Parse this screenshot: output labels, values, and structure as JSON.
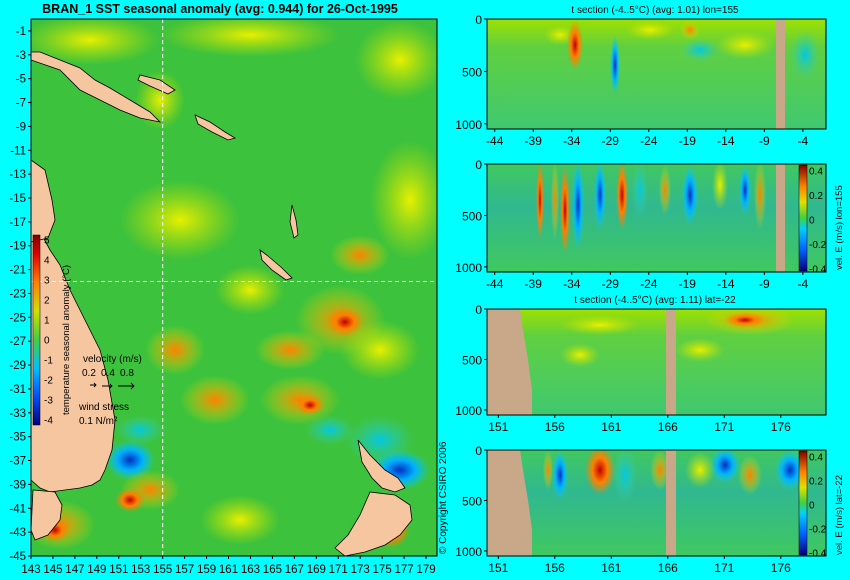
{
  "page": {
    "background": "#00ffff",
    "copyright": "© Copyright CSIRO 2006"
  },
  "chart_data": [
    {
      "type": "heatmap",
      "title": "BRAN_1 SST seasonal anomaly (avg: 0.944) for 26-Oct-1995",
      "x_ticks": [
        "143",
        "145",
        "147",
        "149",
        "151",
        "153",
        "155",
        "157",
        "159",
        "161",
        "163",
        "165",
        "167",
        "169",
        "171",
        "173",
        "175",
        "177",
        "179"
      ],
      "y_ticks": [
        "-1",
        "-3",
        "-5",
        "-7",
        "-9",
        "-11",
        "-13",
        "-15",
        "-17",
        "-19",
        "-21",
        "-23",
        "-25",
        "-27",
        "-29",
        "-31",
        "-33",
        "-35",
        "-37",
        "-39",
        "-41",
        "-43",
        "-45"
      ],
      "xlim": [
        143,
        180
      ],
      "ylim": [
        -45,
        0
      ],
      "crosshair": {
        "lon": 155,
        "lat": -22
      },
      "colorbar": {
        "label": "temperature seasonal anomaly (°C)",
        "ticks": [
          "5",
          "4",
          "3",
          "2",
          "1",
          "0",
          "-1",
          "-2",
          "-3",
          "-4"
        ],
        "range": [
          -4,
          5
        ]
      },
      "velocity_legend": {
        "label": "velocity (m/s)",
        "values": [
          "0.2",
          "0.4",
          "0.8"
        ]
      },
      "wind_legend": {
        "label": "wind stress",
        "value": "0.1 N/m²"
      },
      "land_color": "#f2c4a0",
      "ocean_color": "#39c43a"
    },
    {
      "type": "heatmap",
      "title": "t section (-4..5°C) (avg: 1.01) lon=155",
      "x_ticks": [
        "-44",
        "-39",
        "-34",
        "-29",
        "-24",
        "-19",
        "-14",
        "-9",
        "-4"
      ],
      "y_ticks": [
        "0",
        "500",
        "1000"
      ],
      "xlim": [
        -45,
        -1
      ],
      "ylim": [
        1050,
        0
      ]
    },
    {
      "type": "heatmap",
      "title": "",
      "x_ticks": [
        "-44",
        "-39",
        "-34",
        "-29",
        "-24",
        "-19",
        "-14",
        "-9",
        "-4"
      ],
      "y_ticks": [
        "0",
        "500",
        "1000"
      ],
      "xlim": [
        -45,
        -1
      ],
      "ylim": [
        1050,
        0
      ],
      "colorbar": {
        "label": "vel. E (m/s) lon=155",
        "ticks": [
          "0.4",
          "0.2",
          "0",
          "-0.2",
          "-0.4"
        ],
        "range": [
          -0.4,
          0.4
        ]
      }
    },
    {
      "type": "heatmap",
      "title": "t section (-4..5°C) (avg: 1.11) lat=-22",
      "x_ticks": [
        "151",
        "156",
        "161",
        "166",
        "171",
        "176"
      ],
      "y_ticks": [
        "0",
        "500",
        "1000"
      ],
      "xlim": [
        150,
        180
      ],
      "ylim": [
        1050,
        0
      ]
    },
    {
      "type": "heatmap",
      "title": "",
      "x_ticks": [
        "151",
        "156",
        "161",
        "166",
        "171",
        "176"
      ],
      "y_ticks": [
        "0",
        "500",
        "1000"
      ],
      "xlim": [
        150,
        180
      ],
      "ylim": [
        1050,
        0
      ],
      "colorbar": {
        "label": "vel. E (m/s) lat=-22",
        "ticks": [
          "0.4",
          "0.2",
          "0",
          "-0.2",
          "-0.4"
        ],
        "range": [
          -0.4,
          0.4
        ]
      }
    }
  ]
}
